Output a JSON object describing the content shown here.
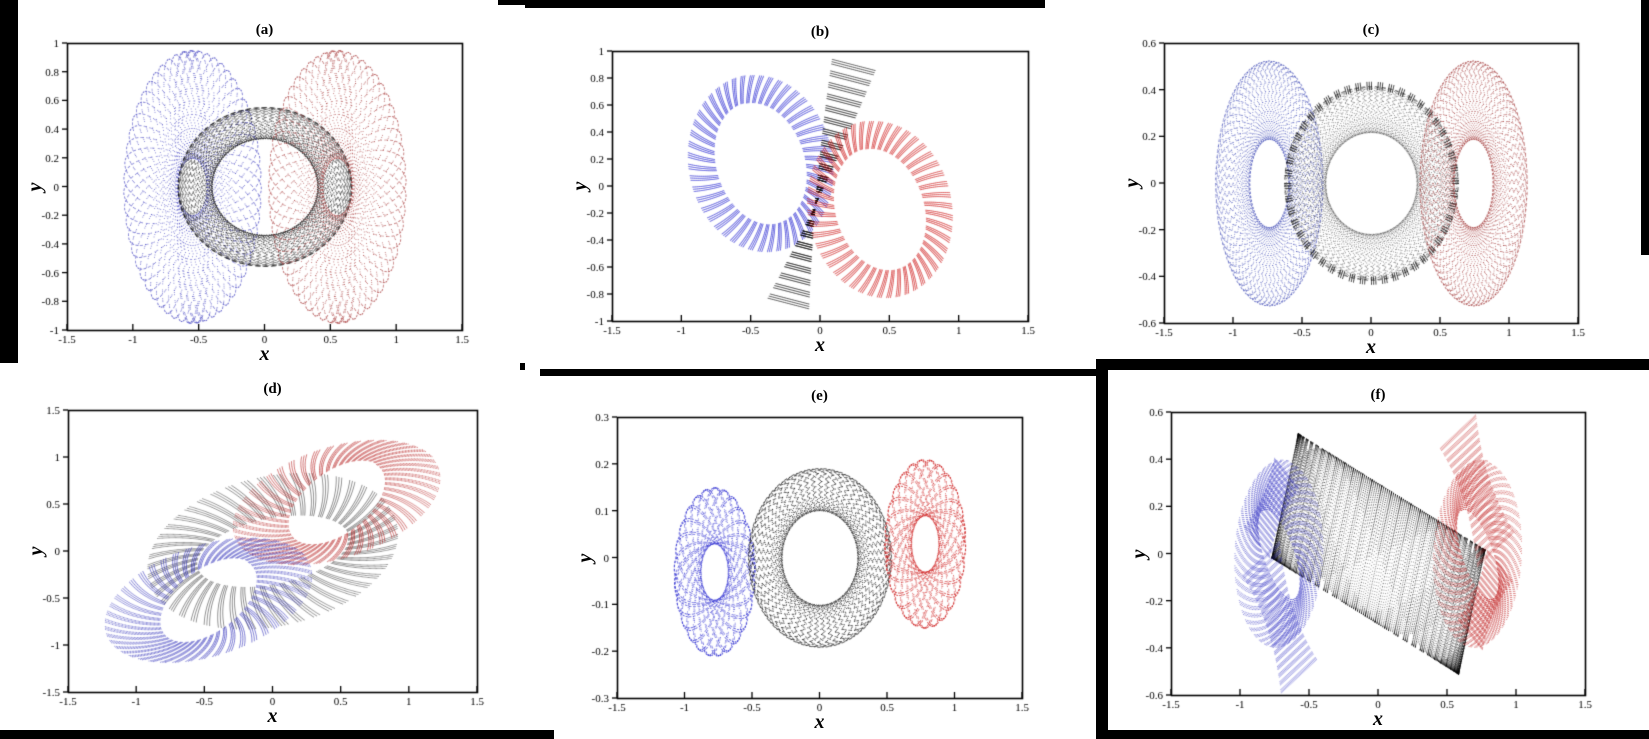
{
  "figure": {
    "page_background": "#000000",
    "panel_background": "#ffffff",
    "axis_color": "#000000"
  },
  "chart_data": [
    {
      "id": "a",
      "title": "(a)",
      "xlabel": "x",
      "ylabel": "y",
      "type": "scatter",
      "xlim": [
        -1.5,
        1.5
      ],
      "ylim": [
        -1,
        1
      ],
      "grid": false,
      "legend": null,
      "xticks": {
        "values": [
          -1.5,
          -1,
          -0.5,
          0,
          0.5,
          1,
          1.5
        ],
        "labels": [
          "-1.5",
          "-1",
          "-0.5",
          "0",
          "0.5",
          "1",
          "1.5"
        ]
      },
      "yticks": {
        "values": [
          1,
          0.8,
          0.6,
          0.4,
          0.2,
          0,
          -0.2,
          -0.4,
          -0.6,
          -0.8,
          -1
        ],
        "labels": [
          "1",
          "0.8",
          "0.6",
          "0.4",
          "0.2",
          "0",
          "-0.2",
          "-0.4",
          "-0.6",
          "-0.8",
          "-1"
        ]
      },
      "series": [
        {
          "name": "body1-blue-trajectory",
          "color": "#4343C0",
          "shape": {
            "type": "rosette",
            "alpha": 0.75,
            "cx": -0.55,
            "cy": 0,
            "a": 0.95,
            "b": 0.2,
            "rot0": 85,
            "sweep": 195,
            "turns": 30,
            "sx": 0.55,
            "sy": 1.0
          }
        },
        {
          "name": "body2-black-trajectory",
          "color": "#000000",
          "shape": {
            "type": "rosette",
            "alpha": 0.5,
            "cx": 0,
            "cy": 0,
            "a": 0.66,
            "b": 0.4,
            "rot0": 0,
            "sweep": 740,
            "turns": 70,
            "sx": 1,
            "sy": 0.84
          }
        },
        {
          "name": "body3-red-trajectory",
          "color": "#A83C3C",
          "shape": {
            "type": "rosette",
            "alpha": 0.75,
            "cx": 0.55,
            "cy": 0,
            "a": 0.95,
            "b": 0.2,
            "rot0": 265,
            "sweep": 195,
            "turns": 30,
            "sx": 0.55,
            "sy": 1.0
          }
        }
      ]
    },
    {
      "id": "b",
      "title": "(b)",
      "xlabel": "x",
      "ylabel": "y",
      "type": "scatter",
      "xlim": [
        -1.5,
        1.5
      ],
      "ylim": [
        -1,
        1
      ],
      "grid": false,
      "legend": null,
      "xticks": {
        "values": [
          -1.5,
          -1,
          -0.5,
          0,
          0.5,
          1,
          1.5
        ],
        "labels": [
          "-1.5",
          "-1",
          "-0.5",
          "0",
          "0.5",
          "1",
          "1.5"
        ]
      },
      "yticks": {
        "values": [
          1,
          0.8,
          0.6,
          0.4,
          0.2,
          0,
          -0.2,
          -0.4,
          -0.6,
          -0.8,
          -1
        ],
        "labels": [
          "1",
          "0.8",
          "0.6",
          "0.4",
          "0.2",
          "0",
          "-0.2",
          "-0.4",
          "-0.6",
          "-0.8",
          "-1"
        ]
      },
      "series": [
        {
          "name": "body1-blue-trajectory",
          "color": "#1E1ECE",
          "shape": {
            "type": "band",
            "alpha": 0.6,
            "cx": -0.43,
            "cy": 0.17,
            "rot": 100,
            "a0": 0.66,
            "b0": 0.52,
            "a1": 0.46,
            "b1": 0.32,
            "loops": 42,
            "rotDrift": 6
          }
        },
        {
          "name": "body2-black-trajectory",
          "color": "#000000",
          "shape": {
            "type": "pinch",
            "alpha": 0.55,
            "x1": 0.24,
            "y1": 0.9,
            "x2": -0.24,
            "y2": -0.9,
            "wEnd": 0.16,
            "wMid": 0.05,
            "twist": -1,
            "lines": 64,
            "pts": 110
          }
        },
        {
          "name": "body3-red-trajectory",
          "color": "#CC1111",
          "shape": {
            "type": "band",
            "alpha": 0.6,
            "cx": 0.43,
            "cy": -0.17,
            "rot": 100,
            "a0": 0.66,
            "b0": 0.52,
            "a1": 0.46,
            "b1": 0.32,
            "loops": 42,
            "rotDrift": 6
          }
        }
      ]
    },
    {
      "id": "c",
      "title": "(c)",
      "xlabel": "x",
      "ylabel": "y",
      "type": "scatter",
      "xlim": [
        -1.5,
        1.5
      ],
      "ylim": [
        -0.6,
        0.6
      ],
      "grid": false,
      "legend": null,
      "xticks": {
        "values": [
          -1.5,
          -1,
          -0.5,
          0,
          0.5,
          1,
          1.5
        ],
        "labels": [
          "-1.5",
          "-1",
          "-0.5",
          "0",
          "0.5",
          "1",
          "1.5"
        ]
      },
      "yticks": {
        "values": [
          0.6,
          0.4,
          0.2,
          0,
          -0.2,
          -0.4,
          -0.6
        ],
        "labels": [
          "0.6",
          "0.4",
          "0.2",
          "0",
          "-0.2",
          "-0.4",
          "-0.6"
        ]
      },
      "series": [
        {
          "name": "body1-blue-trajectory",
          "color": "#3D49B5",
          "shape": {
            "type": "rosette",
            "alpha": 0.7,
            "cx": -0.74,
            "cy": 0,
            "a": 0.5,
            "b": 0.18,
            "rot0": 0,
            "sweep": 360,
            "turns": 34,
            "sx": 0.78,
            "sy": 1.05
          }
        },
        {
          "name": "body2-black-trajectory-outline",
          "color": "#000000",
          "shape": {
            "type": "band",
            "alpha": 0.8,
            "cx": 0,
            "cy": 0,
            "rot": 0,
            "a0": 0.63,
            "b0": 0.435,
            "a1": 0.58,
            "b1": 0.4,
            "loops": 10,
            "rotDrift": 0
          }
        },
        {
          "name": "body2-black-trajectory",
          "color": "#000000",
          "shape": {
            "type": "rosette",
            "alpha": 0.5,
            "cx": 0,
            "cy": 0,
            "a": 0.63,
            "b": 0.33,
            "rot0": 0,
            "sweep": 360,
            "turns": 40,
            "sx": 1,
            "sy": 0.66
          }
        },
        {
          "name": "body3-red-trajectory",
          "color": "#A03434",
          "shape": {
            "type": "rosette",
            "alpha": 0.7,
            "cx": 0.74,
            "cy": 0,
            "a": 0.5,
            "b": 0.18,
            "rot0": 180,
            "sweep": 360,
            "turns": 34,
            "sx": 0.78,
            "sy": 1.05
          }
        }
      ]
    },
    {
      "id": "d",
      "title": "(d)",
      "xlabel": "x",
      "ylabel": "y",
      "type": "scatter",
      "xlim": [
        -1.5,
        1.5
      ],
      "ylim": [
        -1.5,
        1.5
      ],
      "grid": false,
      "legend": null,
      "xticks": {
        "values": [
          -1.5,
          -1,
          -0.5,
          0,
          0.5,
          1,
          1.5
        ],
        "labels": [
          "-1.5",
          "-1",
          "-0.5",
          "0",
          "0.5",
          "1",
          "1.5"
        ]
      },
      "yticks": {
        "values": [
          1.5,
          1,
          0.5,
          0,
          -0.5,
          -1,
          -1.5
        ],
        "labels": [
          "1.5",
          "1",
          "0.5",
          "0",
          "-0.5",
          "-1",
          "-1.5"
        ]
      },
      "series": [
        {
          "name": "body2-black-trajectory",
          "color": "#000000",
          "shape": {
            "type": "band",
            "alpha": 0.5,
            "cx": 0,
            "cy": 0,
            "rot": 33,
            "a0": 0.98,
            "b0": 0.76,
            "a1": 0.58,
            "b1": 0.34,
            "loops": 48,
            "rotDrift": -12
          }
        },
        {
          "name": "body3-red-trajectory",
          "color": "#B41A1A",
          "shape": {
            "type": "band",
            "alpha": 0.6,
            "cx": 0.47,
            "cy": 0.52,
            "rot": 35,
            "a0": 0.85,
            "b0": 0.55,
            "a1": 0.5,
            "b1": 0.27,
            "loops": 40,
            "rotDrift": 22
          }
        },
        {
          "name": "body1-blue-trajectory",
          "color": "#2A2AB8",
          "shape": {
            "type": "band",
            "alpha": 0.6,
            "cx": -0.47,
            "cy": -0.52,
            "rot": 35,
            "a0": 0.85,
            "b0": 0.55,
            "a1": 0.5,
            "b1": 0.27,
            "loops": 40,
            "rotDrift": 22
          }
        }
      ]
    },
    {
      "id": "e",
      "title": "(e)",
      "xlabel": "x",
      "ylabel": "y",
      "type": "scatter",
      "xlim": [
        -1.5,
        1.5
      ],
      "ylim": [
        -0.3,
        0.3
      ],
      "grid": false,
      "legend": null,
      "xticks": {
        "values": [
          -1.5,
          -1,
          -0.5,
          0,
          0.5,
          1,
          1.5
        ],
        "labels": [
          "-1.5",
          "-1",
          "-0.5",
          "0",
          "0.5",
          "1",
          "1.5"
        ]
      },
      "yticks": {
        "values": [
          0.3,
          0.2,
          0.1,
          0,
          -0.1,
          -0.2,
          -0.3
        ],
        "labels": [
          "0.3",
          "0.2",
          "0.1",
          "0",
          "-0.1",
          "-0.2",
          "-0.3"
        ]
      },
      "series": [
        {
          "name": "body1-blue-trajectory",
          "color": "#2424CE",
          "shape": {
            "type": "rosette",
            "alpha": 0.7,
            "cx": -0.78,
            "cy": -0.03,
            "a": 0.3,
            "b": 0.1,
            "rot0": 0,
            "sweep": 380,
            "turns": 26,
            "sx": 1,
            "sy": 0.6
          }
        },
        {
          "name": "body2-black-trajectory",
          "color": "#000000",
          "shape": {
            "type": "rosette",
            "alpha": 0.5,
            "cx": 0,
            "cy": 0,
            "a": 0.53,
            "b": 0.28,
            "rot0": 0,
            "sweep": 360,
            "turns": 55,
            "sx": 1,
            "sy": 0.36
          }
        },
        {
          "name": "body3-red-trajectory",
          "color": "#CC1515",
          "shape": {
            "type": "rosette",
            "alpha": 0.7,
            "cx": 0.78,
            "cy": 0.03,
            "a": 0.3,
            "b": 0.1,
            "rot0": 180,
            "sweep": 380,
            "turns": 26,
            "sx": 1,
            "sy": 0.6
          }
        }
      ]
    },
    {
      "id": "f",
      "title": "(f)",
      "xlabel": "x",
      "ylabel": "y",
      "type": "scatter",
      "xlim": [
        -1.5,
        1.5
      ],
      "ylim": [
        -0.6,
        0.6
      ],
      "grid": false,
      "legend": null,
      "xticks": {
        "values": [
          -1.5,
          -1,
          -0.5,
          0,
          0.5,
          1,
          1.5
        ],
        "labels": [
          "-1.5",
          "-1",
          "-0.5",
          "0",
          "0.5",
          "1",
          "1.5"
        ]
      },
      "yticks": {
        "values": [
          0.6,
          0.4,
          0.2,
          0,
          -0.2,
          -0.4,
          -0.6
        ],
        "labels": [
          "0.6",
          "0.4",
          "0.2",
          "0",
          "-0.2",
          "-0.4",
          "-0.6"
        ]
      },
      "series": [
        {
          "name": "body2-black-trajectory",
          "color": "#000000",
          "shape": {
            "type": "liss",
            "alpha": 0.5,
            "cx": 0,
            "cy": 0,
            "a": 0.72,
            "b": 0.28,
            "p": 1,
            "q": 2.0091,
            "phi": 0,
            "rot": -20,
            "cycles": 90
          }
        },
        {
          "name": "body1-blue-trajectory",
          "color": "#3232C2",
          "shape": {
            "type": "band",
            "alpha": 0.6,
            "cx": -0.72,
            "cy": 0.0,
            "rot": 80,
            "a0": 0.4,
            "b0": 0.32,
            "a1": 0.22,
            "b1": 0.1,
            "loops": 32,
            "rotDrift": 45
          }
        },
        {
          "name": "body1-blue-lower-fan",
          "color": "#3232C2",
          "shape": {
            "type": "pinch",
            "alpha": 0.55,
            "x1": -0.85,
            "y1": -0.02,
            "x2": -0.57,
            "y2": -0.53,
            "wEnd": 0.15,
            "wMid": 0.05,
            "twist": 1,
            "lines": 34,
            "pts": 90
          }
        },
        {
          "name": "body1-blue-upper-fan",
          "color": "#3232C2",
          "shape": {
            "type": "pinch",
            "alpha": 0.55,
            "x1": -0.88,
            "y1": 0.05,
            "x2": -0.66,
            "y2": 0.35,
            "wEnd": 0.11,
            "wMid": 0.05,
            "twist": 1,
            "lines": 26,
            "pts": 80
          }
        },
        {
          "name": "body3-red-trajectory",
          "color": "#BE1A1A",
          "shape": {
            "type": "band",
            "alpha": 0.6,
            "cx": 0.72,
            "cy": 0.0,
            "rot": 80,
            "a0": 0.4,
            "b0": 0.32,
            "a1": 0.22,
            "b1": 0.1,
            "loops": 32,
            "rotDrift": 45
          }
        },
        {
          "name": "body3-red-upper-fan",
          "color": "#BE1A1A",
          "shape": {
            "type": "pinch",
            "alpha": 0.55,
            "x1": 0.85,
            "y1": 0.02,
            "x2": 0.57,
            "y2": 0.53,
            "wEnd": 0.15,
            "wMid": 0.05,
            "twist": 1,
            "lines": 34,
            "pts": 90
          }
        },
        {
          "name": "body3-red-lower-fan",
          "color": "#BE1A1A",
          "shape": {
            "type": "pinch",
            "alpha": 0.55,
            "x1": 0.88,
            "y1": -0.05,
            "x2": 0.66,
            "y2": -0.35,
            "wEnd": 0.11,
            "wMid": 0.05,
            "twist": 1,
            "lines": 26,
            "pts": 80
          }
        }
      ]
    }
  ]
}
